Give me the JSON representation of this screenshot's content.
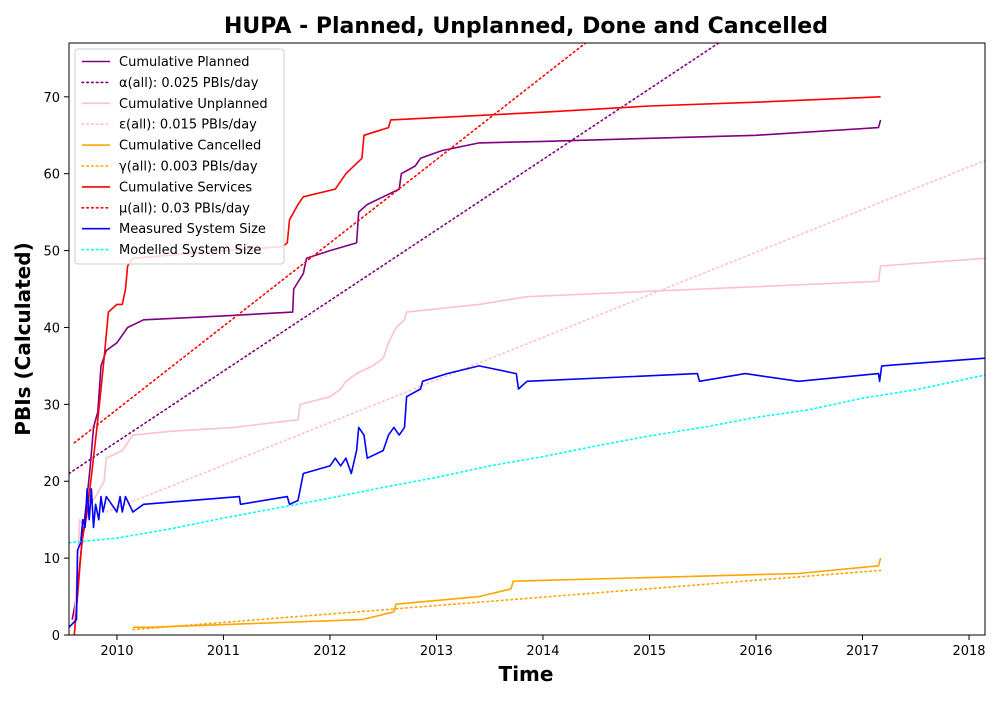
{
  "chart_data": {
    "type": "line",
    "title": "HUPA - Planned, Unplanned, Done  and Cancelled",
    "xlabel": "Time",
    "ylabel": "PBIs (Calculated)",
    "xlim": [
      2009.55,
      2018.15
    ],
    "ylim": [
      0,
      77
    ],
    "x_ticks": [
      2010,
      2011,
      2012,
      2013,
      2014,
      2015,
      2016,
      2017,
      2018
    ],
    "y_ticks": [
      0,
      10,
      20,
      30,
      40,
      50,
      60,
      70
    ],
    "legend_position": "top-left",
    "grid": false,
    "series": [
      {
        "name": "Cumulative Planned",
        "color": "#800080",
        "style": "solid",
        "points": [
          [
            2009.58,
            2
          ],
          [
            2009.62,
            5
          ],
          [
            2009.68,
            13
          ],
          [
            2009.72,
            18
          ],
          [
            2009.75,
            22
          ],
          [
            2009.78,
            27
          ],
          [
            2009.82,
            29
          ],
          [
            2009.85,
            35
          ],
          [
            2009.9,
            37
          ],
          [
            2010.0,
            38
          ],
          [
            2010.1,
            40
          ],
          [
            2010.25,
            41
          ],
          [
            2011.0,
            41.5
          ],
          [
            2011.65,
            42
          ],
          [
            2011.66,
            45
          ],
          [
            2011.75,
            47
          ],
          [
            2011.78,
            49
          ],
          [
            2012.0,
            50
          ],
          [
            2012.25,
            51
          ],
          [
            2012.27,
            55
          ],
          [
            2012.35,
            56
          ],
          [
            2012.5,
            57
          ],
          [
            2012.65,
            58
          ],
          [
            2012.67,
            60
          ],
          [
            2012.8,
            61
          ],
          [
            2012.85,
            62
          ],
          [
            2013.05,
            63
          ],
          [
            2013.4,
            64
          ],
          [
            2014.0,
            64.2
          ],
          [
            2015.0,
            64.6
          ],
          [
            2016.0,
            65
          ],
          [
            2017.15,
            66
          ],
          [
            2017.17,
            67
          ]
        ]
      },
      {
        "name": "α(all): 0.025 PBIs/day",
        "color": "#800080",
        "style": "dotted",
        "points": [
          [
            2009.55,
            21
          ],
          [
            2015.65,
            77
          ]
        ]
      },
      {
        "name": "Cumulative Unplanned",
        "color": "#ffc0cb",
        "style": "solid",
        "points": [
          [
            2009.6,
            1
          ],
          [
            2009.65,
            15
          ],
          [
            2009.7,
            14
          ],
          [
            2009.75,
            17
          ],
          [
            2009.8,
            18
          ],
          [
            2009.88,
            20
          ],
          [
            2009.9,
            23
          ],
          [
            2010.05,
            24
          ],
          [
            2010.15,
            26
          ],
          [
            2010.5,
            26.5
          ],
          [
            2011.1,
            27
          ],
          [
            2011.7,
            28
          ],
          [
            2011.72,
            30
          ],
          [
            2012.0,
            31
          ],
          [
            2012.1,
            32
          ],
          [
            2012.15,
            33
          ],
          [
            2012.25,
            34
          ],
          [
            2012.4,
            35
          ],
          [
            2012.5,
            36
          ],
          [
            2012.55,
            38
          ],
          [
            2012.62,
            40
          ],
          [
            2012.7,
            41
          ],
          [
            2012.72,
            42
          ],
          [
            2013.4,
            43
          ],
          [
            2013.85,
            44
          ],
          [
            2015.0,
            44.7
          ],
          [
            2016.0,
            45.3
          ],
          [
            2017.15,
            46
          ],
          [
            2017.17,
            48
          ],
          [
            2018.15,
            49
          ]
        ]
      },
      {
        "name": "ε(all): 0.015 PBIs/day",
        "color": "#ffc0cb",
        "style": "dotted",
        "points": [
          [
            2009.9,
            16
          ],
          [
            2018.15,
            61.7
          ]
        ]
      },
      {
        "name": "Cumulative Cancelled",
        "color": "#ffa500",
        "style": "solid",
        "points": [
          [
            2010.15,
            1
          ],
          [
            2010.3,
            1
          ],
          [
            2012.3,
            2
          ],
          [
            2012.6,
            3
          ],
          [
            2012.62,
            4
          ],
          [
            2013.4,
            5
          ],
          [
            2013.7,
            6
          ],
          [
            2013.72,
            7
          ],
          [
            2016.4,
            8
          ],
          [
            2017.15,
            9
          ],
          [
            2017.17,
            10
          ]
        ]
      },
      {
        "name": "γ(all): 0.003 PBIs/day",
        "color": "#ffa500",
        "style": "dotted",
        "points": [
          [
            2010.15,
            0.7
          ],
          [
            2017.17,
            8.4
          ]
        ]
      },
      {
        "name": "Cumulative Services",
        "color": "#ff0000",
        "style": "solid",
        "points": [
          [
            2009.6,
            0
          ],
          [
            2009.63,
            5
          ],
          [
            2009.67,
            12
          ],
          [
            2009.72,
            16
          ],
          [
            2009.78,
            23
          ],
          [
            2009.82,
            28
          ],
          [
            2009.85,
            32
          ],
          [
            2009.88,
            36
          ],
          [
            2009.92,
            42
          ],
          [
            2010.0,
            43
          ],
          [
            2010.05,
            43
          ],
          [
            2010.08,
            45
          ],
          [
            2010.1,
            48
          ],
          [
            2010.15,
            49
          ],
          [
            2011.0,
            50
          ],
          [
            2011.55,
            50.5
          ],
          [
            2011.6,
            51
          ],
          [
            2011.62,
            54
          ],
          [
            2011.7,
            56
          ],
          [
            2011.75,
            57
          ],
          [
            2012.05,
            58
          ],
          [
            2012.15,
            60
          ],
          [
            2012.3,
            62
          ],
          [
            2012.32,
            65
          ],
          [
            2012.55,
            66
          ],
          [
            2012.57,
            67
          ],
          [
            2014.0,
            68
          ],
          [
            2015.0,
            68.8
          ],
          [
            2016.0,
            69.3
          ],
          [
            2017.17,
            70
          ]
        ]
      },
      {
        "name": "μ(all): 0.03 PBIs/day",
        "color": "#ff0000",
        "style": "dotted",
        "points": [
          [
            2009.6,
            25
          ],
          [
            2014.4,
            77
          ]
        ]
      },
      {
        "name": "Measured System Size",
        "color": "#0000ff",
        "style": "solid",
        "points": [
          [
            2009.55,
            1
          ],
          [
            2009.62,
            2
          ],
          [
            2009.63,
            11
          ],
          [
            2009.66,
            12
          ],
          [
            2009.68,
            15
          ],
          [
            2009.7,
            14
          ],
          [
            2009.72,
            19
          ],
          [
            2009.74,
            15
          ],
          [
            2009.76,
            19
          ],
          [
            2009.78,
            14
          ],
          [
            2009.8,
            17
          ],
          [
            2009.83,
            15
          ],
          [
            2009.85,
            18
          ],
          [
            2009.87,
            16
          ],
          [
            2009.9,
            18
          ],
          [
            2009.95,
            17
          ],
          [
            2010.0,
            16
          ],
          [
            2010.03,
            18
          ],
          [
            2010.05,
            16
          ],
          [
            2010.08,
            18
          ],
          [
            2010.15,
            16
          ],
          [
            2010.25,
            17
          ],
          [
            2011.15,
            18
          ],
          [
            2011.16,
            17
          ],
          [
            2011.6,
            18
          ],
          [
            2011.62,
            17
          ],
          [
            2011.7,
            17.5
          ],
          [
            2011.75,
            21
          ],
          [
            2012.0,
            22
          ],
          [
            2012.05,
            23
          ],
          [
            2012.1,
            22
          ],
          [
            2012.15,
            23
          ],
          [
            2012.2,
            21
          ],
          [
            2012.25,
            24
          ],
          [
            2012.27,
            27
          ],
          [
            2012.32,
            26
          ],
          [
            2012.35,
            23
          ],
          [
            2012.5,
            24
          ],
          [
            2012.55,
            26
          ],
          [
            2012.6,
            27
          ],
          [
            2012.65,
            26
          ],
          [
            2012.7,
            27
          ],
          [
            2012.72,
            31
          ],
          [
            2012.85,
            32
          ],
          [
            2012.87,
            33
          ],
          [
            2013.1,
            34
          ],
          [
            2013.4,
            35
          ],
          [
            2013.75,
            34
          ],
          [
            2013.77,
            32
          ],
          [
            2013.85,
            33
          ],
          [
            2015.45,
            34
          ],
          [
            2015.47,
            33
          ],
          [
            2015.9,
            34
          ],
          [
            2016.4,
            33
          ],
          [
            2017.15,
            34
          ],
          [
            2017.16,
            33
          ],
          [
            2017.18,
            35
          ],
          [
            2018.15,
            36
          ]
        ]
      },
      {
        "name": "Modelled System Size",
        "color": "#00ffff",
        "style": "dotted",
        "points": [
          [
            2009.55,
            12
          ],
          [
            2010.0,
            12.6
          ],
          [
            2010.5,
            13.8
          ],
          [
            2011.0,
            15.2
          ],
          [
            2011.5,
            16.5
          ],
          [
            2012.0,
            17.8
          ],
          [
            2012.5,
            19.2
          ],
          [
            2013.0,
            20.5
          ],
          [
            2013.5,
            22.0
          ],
          [
            2014.0,
            23.2
          ],
          [
            2014.5,
            24.6
          ],
          [
            2015.0,
            25.9
          ],
          [
            2015.5,
            27.0
          ],
          [
            2016.0,
            28.3
          ],
          [
            2016.5,
            29.3
          ],
          [
            2017.0,
            30.8
          ],
          [
            2017.5,
            31.9
          ],
          [
            2018.15,
            33.8
          ]
        ]
      }
    ]
  }
}
